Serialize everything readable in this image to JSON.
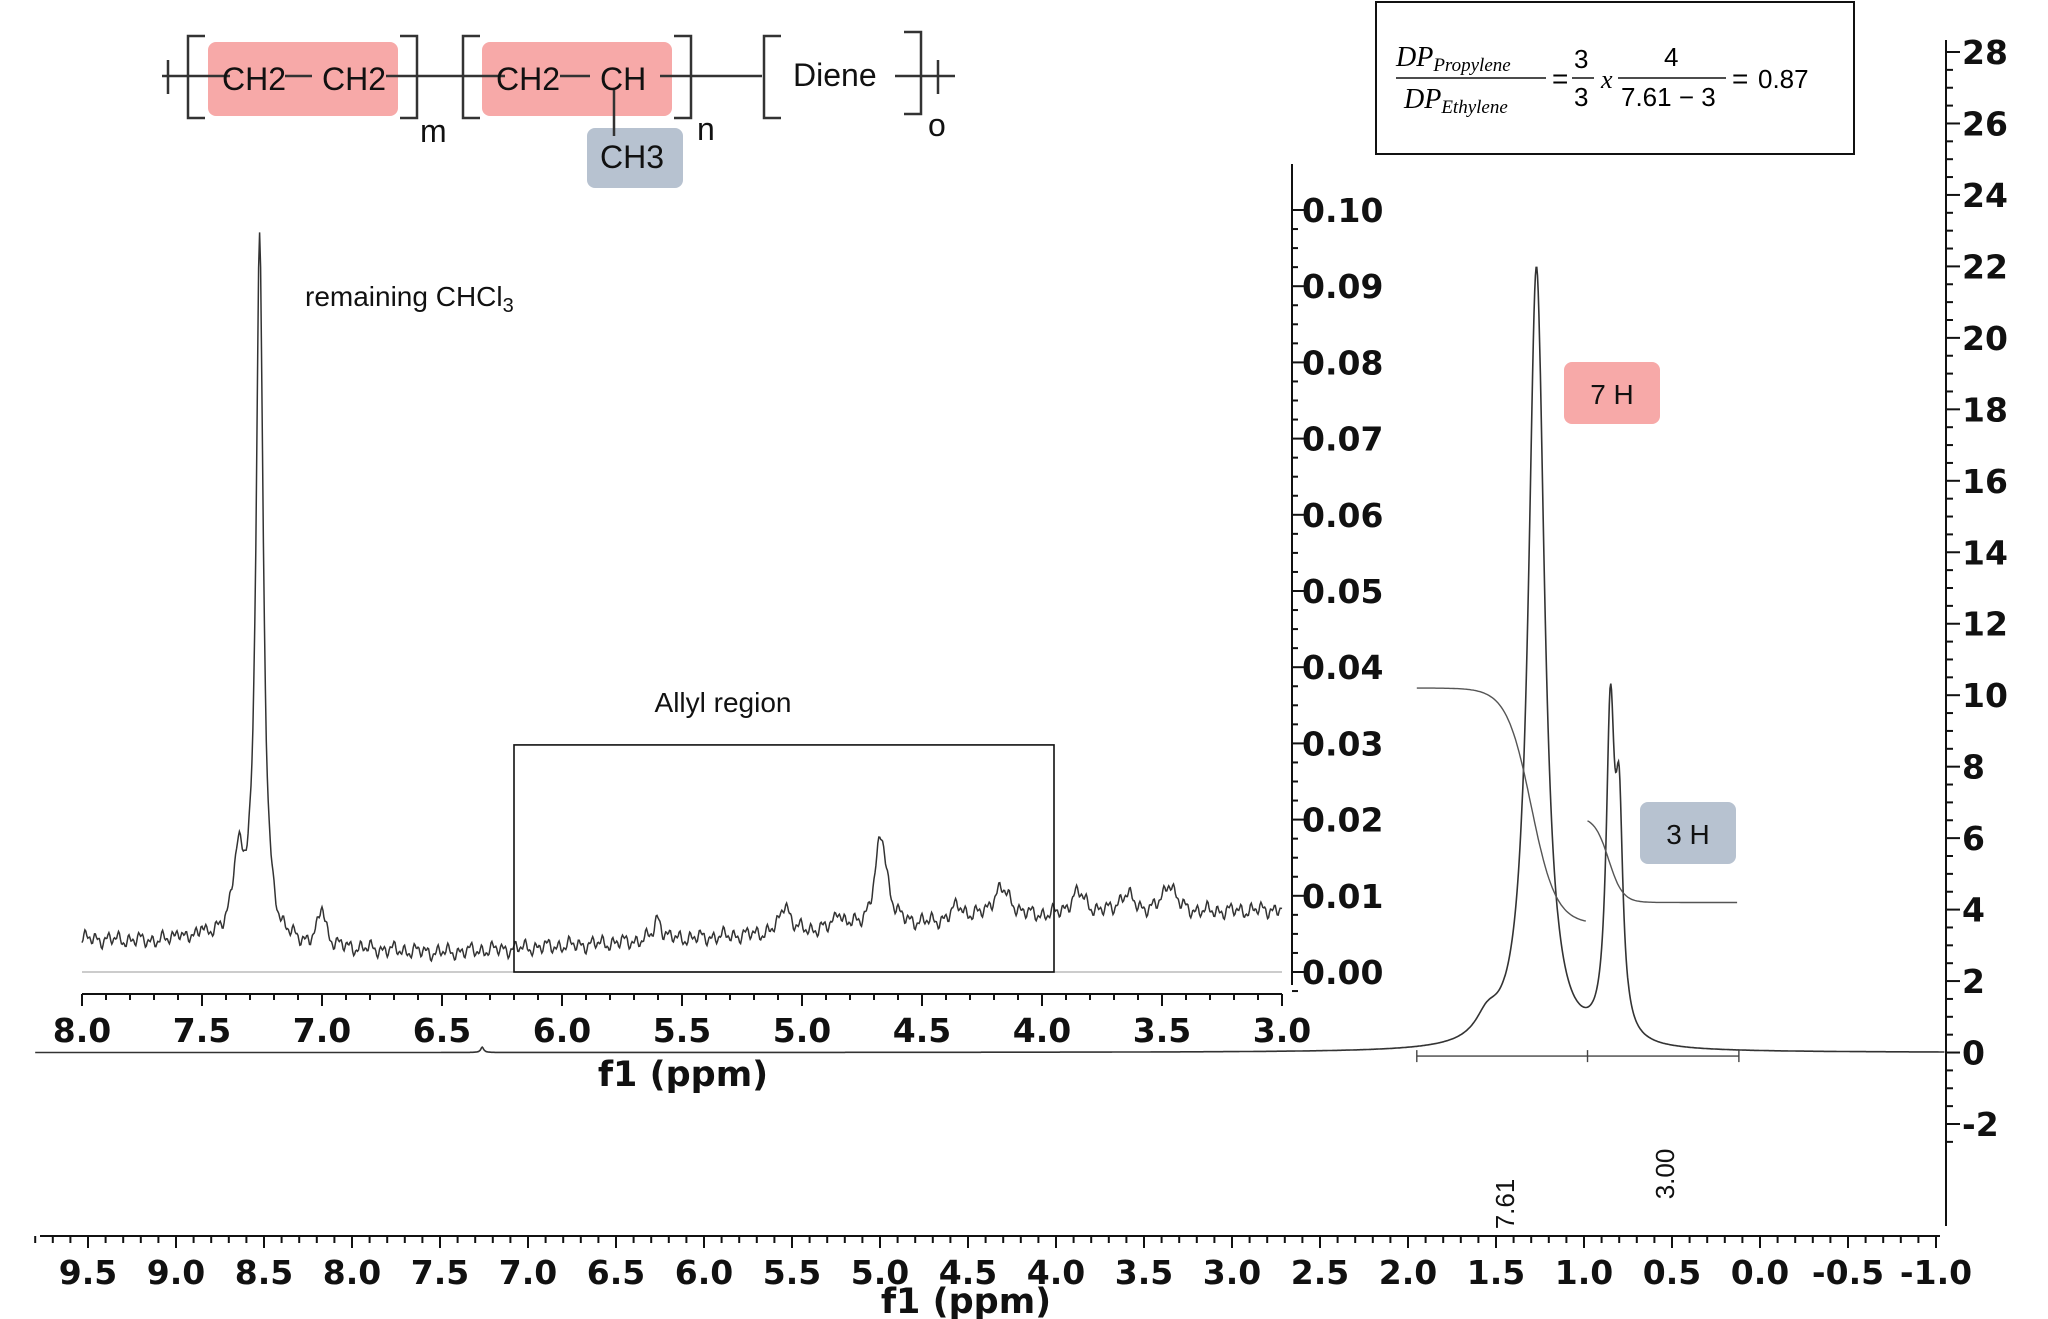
{
  "structure": {
    "segments": [
      "CH2",
      "CH2",
      "CH2",
      "CH",
      "CH3",
      "Diene"
    ],
    "subscripts": [
      "m",
      "n",
      "o"
    ],
    "highlight_ethylene": "#f7a9a8",
    "highlight_methyl": "#b7c2d0"
  },
  "equation": {
    "numerator_left": "DP",
    "numerator_left_sub": "Propylene",
    "denominator_left": "DP",
    "denominator_left_sub": "Ethylene",
    "eq1": "=",
    "frac1_num": "3",
    "frac1_den": "3",
    "times": "x",
    "frac2_num": "4",
    "frac2_den": "7.61 − 3",
    "eq2": "=",
    "result": "0.87"
  },
  "labels": {
    "chcl3_prefix": "remaining CHCl",
    "chcl3_sub": "3",
    "allyl": "Allyl region",
    "peak_7h": "7 H",
    "peak_3h": "3 H",
    "integral_1": "7.61",
    "integral_2": "3.00",
    "color_7h": "#f7a9a8",
    "color_3h": "#b7c2d0"
  },
  "chart_data": [
    {
      "type": "line",
      "name": "main spectrum",
      "xlabel": "f1 (ppm)",
      "ylabel": "",
      "xlim": [
        9.5,
        -1.0
      ],
      "x_ticks": [
        "9.5",
        "9.0",
        "8.5",
        "8.0",
        "7.5",
        "7.0",
        "6.5",
        "6.0",
        "5.5",
        "5.0",
        "4.5",
        "4.0",
        "3.5",
        "3.0",
        "2.5",
        "2.0",
        "1.5",
        "1.0",
        "0.5",
        "0.0",
        "-0.5",
        "-1.0"
      ],
      "ylim": [
        -2,
        28
      ],
      "y_ticks": [
        "28",
        "26",
        "24",
        "22",
        "20",
        "18",
        "16",
        "14",
        "12",
        "10",
        "8",
        "6",
        "4",
        "2",
        "0",
        "-2"
      ],
      "peaks": [
        {
          "x": 1.27,
          "y": 21.9,
          "label": "7 H",
          "integral": "7.61"
        },
        {
          "x": 0.85,
          "y": 8.8,
          "label": "3 H",
          "integral": "3.00"
        }
      ]
    },
    {
      "type": "line",
      "name": "inset spectrum",
      "xlabel": "f1 (ppm)",
      "ylabel": "",
      "xlim": [
        8.0,
        3.0
      ],
      "x_ticks": [
        "8.0",
        "7.5",
        "7.0",
        "6.5",
        "6.0",
        "5.5",
        "5.0",
        "4.5",
        "4.0",
        "3.5",
        "3.0"
      ],
      "ylim": [
        0.0,
        0.1
      ],
      "y_ticks": [
        "0.10",
        "0.09",
        "0.08",
        "0.07",
        "0.06",
        "0.05",
        "0.04",
        "0.03",
        "0.02",
        "0.01",
        "0.00"
      ],
      "peaks": [
        {
          "x": 7.26,
          "y": 0.098,
          "label": "remaining CHCl3"
        },
        {
          "x": 7.35,
          "y": 0.014
        },
        {
          "x": 7.0,
          "y": 0.008
        },
        {
          "x": 5.6,
          "y": 0.007
        },
        {
          "x": 5.07,
          "y": 0.009
        },
        {
          "x": 4.67,
          "y": 0.018
        },
        {
          "x": 4.17,
          "y": 0.012
        },
        {
          "x": 3.47,
          "y": 0.013
        }
      ],
      "annotation_box": {
        "x_range": [
          6.2,
          3.95
        ],
        "label": "Allyl region"
      }
    }
  ]
}
